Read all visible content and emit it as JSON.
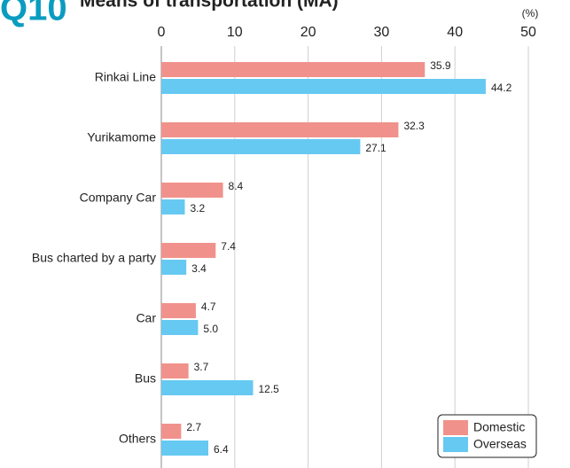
{
  "chart_data": {
    "type": "hbar",
    "question": "Q10",
    "title": "Means of transportation (MA)",
    "unit": "(%)",
    "categories": [
      "Rinkai Line",
      "Yurikamome",
      "Company Car",
      "Bus charted by a party",
      "Car",
      "Bus",
      "Others"
    ],
    "series": [
      {
        "name": "Domestic",
        "color": "#f0928b",
        "values": [
          35.9,
          32.3,
          8.4,
          7.4,
          4.7,
          3.7,
          2.7
        ],
        "value_labels": [
          "35.9",
          "32.3",
          "8.4",
          "7.4",
          "4.7",
          "3.7",
          "2.7"
        ]
      },
      {
        "name": "Overseas",
        "color": "#66c9f2",
        "values": [
          44.2,
          27.1,
          3.2,
          3.4,
          5.0,
          12.5,
          6.4
        ],
        "value_labels": [
          "44.2",
          "27.1",
          "3.2",
          "3.4",
          "5.0",
          "12.5",
          "6.4"
        ]
      }
    ],
    "xlim": [
      0,
      50
    ],
    "xticks": [
      0,
      10,
      20,
      30,
      40,
      50
    ],
    "grid": true,
    "legend": "lower right"
  }
}
